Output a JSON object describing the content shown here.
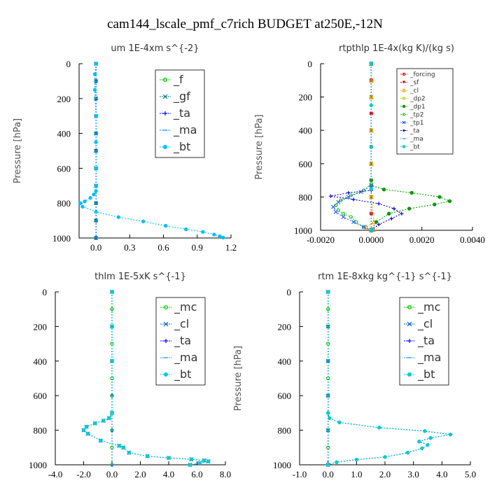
{
  "figure": {
    "title": "cam144_lscale_pmf_c7rich  BUDGET at250E,-12N"
  },
  "chart_data": [
    {
      "type": "line",
      "title": "um  1E-4xm s^{-2}",
      "ylabel": "Pressure [hPa]",
      "xlim": [
        -0.15,
        1.2
      ],
      "ylim": [
        1000,
        0
      ],
      "xticks": [
        0.0,
        0.3,
        0.6,
        0.9,
        1.2
      ],
      "xtick_labels": [
        "0.0",
        "0.3",
        "0.6",
        "0.9",
        "1.2"
      ],
      "yticks": [
        0,
        200,
        400,
        600,
        800,
        1000
      ],
      "ytick_labels": [
        "0",
        "200",
        "400",
        "600",
        "800",
        "1000"
      ],
      "legend": "top-right",
      "series": [
        {
          "name": "_f",
          "color": "#00cc00",
          "marker": "o",
          "x": [
            0,
            0,
            0,
            0,
            0,
            0,
            0,
            0,
            0,
            0,
            0
          ],
          "y": [
            0,
            100,
            200,
            300,
            400,
            500,
            600,
            700,
            800,
            900,
            1000
          ]
        },
        {
          "name": "_gf",
          "color": "#008080",
          "marker": "x",
          "x": [
            0,
            0,
            0,
            0,
            0,
            0,
            0,
            0,
            0,
            0,
            0
          ],
          "y": [
            0,
            100,
            200,
            300,
            400,
            500,
            600,
            700,
            800,
            900,
            1000
          ]
        },
        {
          "name": "_ta",
          "color": "#0000ff",
          "marker": "+",
          "x": [
            0,
            0,
            0,
            0,
            0,
            0,
            0,
            0,
            0,
            0,
            0
          ],
          "y": [
            0,
            100,
            200,
            300,
            400,
            500,
            600,
            700,
            800,
            900,
            1000
          ]
        },
        {
          "name": "_ma",
          "color": "#1e90ff",
          "marker": "-",
          "x": [
            0,
            0,
            0,
            0,
            0,
            0,
            0,
            0,
            0,
            0,
            0
          ],
          "y": [
            0,
            100,
            200,
            300,
            400,
            500,
            600,
            700,
            800,
            900,
            1000
          ]
        },
        {
          "name": "_bt",
          "color": "#00bfff",
          "marker": "*",
          "x": [
            0,
            -0.01,
            -0.01,
            0,
            0,
            0,
            0,
            0,
            -0.02,
            -0.05,
            -0.1,
            -0.14,
            -0.12,
            0,
            0.2,
            0.42,
            0.62,
            0.8,
            0.95,
            1.05,
            1.1,
            1.13
          ],
          "y": [
            0,
            60,
            150,
            300,
            450,
            600,
            700,
            730,
            750,
            770,
            790,
            800,
            820,
            850,
            880,
            905,
            930,
            950,
            965,
            980,
            990,
            998
          ]
        }
      ]
    },
    {
      "type": "line",
      "title": "rtpthlp  1E-4x(kg K)/(kg s)",
      "ylabel": "Pressure [hPa]",
      "xlim": [
        -0.002,
        0.004
      ],
      "ylim": [
        1000,
        0
      ],
      "xticks": [
        -0.002,
        0.0,
        0.002,
        0.004
      ],
      "xtick_labels": [
        "-0.0020",
        "0.0000",
        "0.0020",
        "0.0040"
      ],
      "yticks": [
        0,
        200,
        400,
        600,
        800,
        1000
      ],
      "ytick_labels": [
        "0",
        "200",
        "400",
        "600",
        "800",
        "1000"
      ],
      "legend": "top-right",
      "series": [
        {
          "name": "_forcing",
          "color": "#ff0000",
          "marker": "o",
          "x": [
            0,
            0,
            0,
            0,
            0,
            0,
            0,
            0,
            0,
            0,
            0
          ],
          "y": [
            0,
            100,
            200,
            300,
            400,
            500,
            600,
            700,
            800,
            900,
            1000
          ]
        },
        {
          "name": "_sf",
          "color": "#cc0000",
          "marker": "v",
          "x": [
            0,
            0,
            0,
            0,
            0,
            0,
            0,
            0,
            0,
            0,
            0
          ],
          "y": [
            0,
            100,
            200,
            300,
            400,
            500,
            600,
            700,
            800,
            900,
            1000
          ]
        },
        {
          "name": "_cl",
          "color": "#ff9900",
          "marker": "^",
          "x": [
            0,
            0,
            0,
            0,
            0,
            0,
            0.0001,
            -0.0002,
            0.0001,
            0
          ],
          "y": [
            0,
            100,
            200,
            400,
            600,
            800,
            950,
            980,
            995,
            1000
          ]
        },
        {
          "name": "_dp2",
          "color": "#cccc00",
          "marker": "o",
          "x": [
            0,
            0,
            0,
            0,
            0,
            0
          ],
          "y": [
            0,
            200,
            400,
            600,
            800,
            1000
          ]
        },
        {
          "name": "_dp1",
          "color": "#009900",
          "marker": "*",
          "x": [
            0,
            0,
            0,
            0.0005,
            0.0016,
            0.0027,
            0.0031,
            0.0025,
            0.0015,
            0.0007,
            0.0002,
            0
          ],
          "y": [
            0,
            700,
            730,
            755,
            775,
            800,
            825,
            845,
            870,
            900,
            950,
            1000
          ]
        },
        {
          "name": "_tp2",
          "color": "#33cc33",
          "marker": "o",
          "x": [
            0,
            0,
            -0.0003,
            -0.0008,
            -0.0012,
            -0.0014,
            -0.0013,
            -0.0011,
            -0.0008,
            -0.0006,
            -0.0003,
            0
          ],
          "y": [
            0,
            720,
            760,
            790,
            820,
            850,
            880,
            900,
            920,
            950,
            980,
            1000
          ]
        },
        {
          "name": "_tp1",
          "color": "#3366ff",
          "marker": "x",
          "x": [
            0,
            0,
            -0.0004,
            -0.0009,
            -0.0013,
            -0.0015,
            -0.0014,
            -0.0011,
            -0.0007,
            -0.0003,
            0
          ],
          "y": [
            0,
            730,
            770,
            800,
            830,
            860,
            890,
            920,
            950,
            980,
            1000
          ]
        },
        {
          "name": "_ta",
          "color": "#0000cc",
          "marker": "+",
          "x": [
            0,
            0,
            -0.0009,
            -0.0016,
            -0.0007,
            0.0003,
            0.0009,
            0.0012,
            0.0008,
            0.0003,
            0
          ],
          "y": [
            0,
            760,
            775,
            795,
            815,
            840,
            870,
            900,
            930,
            965,
            1000
          ]
        },
        {
          "name": "_ma",
          "color": "#3399ff",
          "marker": "-",
          "x": [
            0,
            0,
            0,
            0,
            0
          ],
          "y": [
            0,
            250,
            500,
            750,
            1000
          ]
        },
        {
          "name": "_bt",
          "color": "#00cccc",
          "marker": "*",
          "x": [
            0,
            0,
            0,
            0,
            0
          ],
          "y": [
            0,
            250,
            500,
            750,
            1000
          ]
        }
      ]
    },
    {
      "type": "line",
      "title": "thlm  1E-5xK s^{-1}",
      "ylabel": "Pressure [hPa]",
      "xlim": [
        -4.0,
        8.0
      ],
      "ylim": [
        1000,
        0
      ],
      "xticks": [
        -4.0,
        -2.0,
        0.0,
        2.0,
        4.0,
        6.0,
        8.0
      ],
      "xtick_labels": [
        "-4.0",
        "-2.0",
        "0.0",
        "2.0",
        "4.0",
        "6.0",
        "8.0"
      ],
      "yticks": [
        0,
        200,
        400,
        600,
        800,
        1000
      ],
      "ytick_labels": [
        "0",
        "200",
        "400",
        "600",
        "800",
        "1000"
      ],
      "legend": "top-right",
      "series": [
        {
          "name": "_mc",
          "color": "#00cc00",
          "marker": "o",
          "x": [
            0,
            0,
            0,
            0,
            0,
            0,
            0,
            0,
            0,
            0,
            0
          ],
          "y": [
            0,
            100,
            200,
            300,
            400,
            500,
            600,
            700,
            800,
            900,
            1000
          ]
        },
        {
          "name": "_cl",
          "color": "#0066cc",
          "marker": "x",
          "x": [
            0,
            0,
            0,
            0,
            -0.2,
            -0.6,
            -1.2,
            -1.8,
            -2.0,
            -1.7,
            -0.8,
            0.5,
            0.8,
            1.2,
            2.5,
            4.0,
            5.6,
            6.5,
            6.8,
            6.2,
            5.5
          ],
          "y": [
            0,
            200,
            400,
            700,
            730,
            745,
            760,
            780,
            800,
            820,
            860,
            890,
            900,
            930,
            950,
            960,
            968,
            975,
            980,
            990,
            1000
          ]
        },
        {
          "name": "_ta",
          "color": "#0000ff",
          "marker": "+",
          "x": [
            0,
            0,
            0,
            0,
            0,
            0
          ],
          "y": [
            0,
            200,
            400,
            600,
            800,
            1000
          ]
        },
        {
          "name": "_ma",
          "color": "#3399ff",
          "marker": "-",
          "x": [
            0,
            0,
            0,
            0,
            0,
            0
          ],
          "y": [
            0,
            200,
            400,
            600,
            800,
            1000
          ]
        },
        {
          "name": "_bt",
          "color": "#00cccc",
          "marker": "*",
          "x": [
            0,
            0,
            0,
            0,
            -0.2,
            -0.6,
            -1.2,
            -1.8,
            -2.0,
            -1.7,
            -0.8,
            0.5,
            0.8,
            1.2,
            2.5,
            4.0,
            5.6,
            6.5,
            6.8,
            6.2,
            5.5
          ],
          "y": [
            0,
            200,
            400,
            700,
            730,
            745,
            760,
            780,
            800,
            820,
            860,
            890,
            900,
            930,
            950,
            960,
            968,
            975,
            980,
            990,
            1000
          ]
        }
      ]
    },
    {
      "type": "line",
      "title": "rtm  1E-8xkg kg^{-1} s^{-1}",
      "ylabel": "Pressure [hPa]",
      "xlim": [
        -1.0,
        5.0
      ],
      "ylim": [
        1000,
        0
      ],
      "xticks": [
        -1.0,
        0.0,
        1.0,
        2.0,
        3.0,
        4.0,
        5.0
      ],
      "xtick_labels": [
        "-1.0",
        "0.0",
        "1.0",
        "2.0",
        "3.0",
        "4.0",
        "5.0"
      ],
      "yticks": [
        0,
        200,
        400,
        600,
        800,
        1000
      ],
      "ytick_labels": [
        "0",
        "200",
        "400",
        "600",
        "800",
        "1000"
      ],
      "legend": "top-right",
      "series": [
        {
          "name": "_mc",
          "color": "#00cc00",
          "marker": "o",
          "x": [
            0,
            0,
            0,
            0,
            0,
            0,
            0,
            0,
            0,
            0,
            0
          ],
          "y": [
            0,
            100,
            200,
            300,
            400,
            500,
            600,
            700,
            800,
            900,
            1000
          ]
        },
        {
          "name": "_cl",
          "color": "#0066cc",
          "marker": "x",
          "x": [
            0,
            0,
            0,
            0,
            0,
            0
          ],
          "y": [
            0,
            200,
            400,
            600,
            800,
            1000
          ]
        },
        {
          "name": "_ta",
          "color": "#0000ff",
          "marker": "+",
          "x": [
            0,
            0,
            0.05,
            0.4,
            1.8,
            3.4,
            4.3,
            3.6,
            3.2,
            3.5,
            3.3,
            2.8,
            2.0,
            1.0,
            0.3,
            0
          ],
          "y": [
            0,
            700,
            730,
            755,
            785,
            805,
            825,
            845,
            865,
            885,
            905,
            930,
            955,
            970,
            985,
            1000
          ]
        },
        {
          "name": "_ma",
          "color": "#3399ff",
          "marker": "-",
          "x": [
            0,
            0,
            0,
            0,
            0,
            0
          ],
          "y": [
            0,
            200,
            400,
            600,
            800,
            1000
          ]
        },
        {
          "name": "_bt",
          "color": "#00cccc",
          "marker": "*",
          "x": [
            0,
            0,
            0.05,
            0.4,
            1.8,
            3.4,
            4.3,
            3.6,
            3.2,
            3.5,
            3.3,
            2.8,
            2.0,
            1.0,
            0.3,
            0
          ],
          "y": [
            0,
            700,
            730,
            755,
            785,
            805,
            825,
            845,
            865,
            885,
            905,
            930,
            955,
            970,
            985,
            1000
          ]
        }
      ]
    }
  ]
}
